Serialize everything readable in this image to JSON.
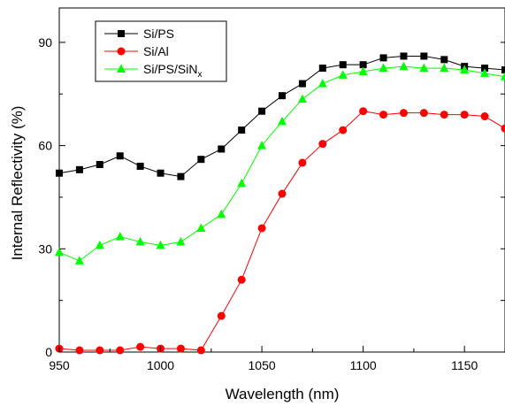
{
  "chart_data": {
    "type": "line",
    "xlabel": "Wavelength (nm)",
    "ylabel": "Internal Reflectivity (%)",
    "xlim": [
      950,
      1170
    ],
    "ylim": [
      0,
      100
    ],
    "xticks": [
      950,
      1000,
      1050,
      1100,
      1150
    ],
    "yticks": [
      0,
      30,
      60,
      90
    ],
    "x": [
      950,
      960,
      970,
      980,
      990,
      1000,
      1010,
      1020,
      1030,
      1040,
      1050,
      1060,
      1070,
      1080,
      1090,
      1100,
      1110,
      1120,
      1130,
      1140,
      1150,
      1160,
      1170
    ],
    "legend_position": "top-left",
    "series": [
      {
        "name": "Si/PS",
        "color": "#000000",
        "marker": "square",
        "values": [
          52,
          53,
          54.5,
          57,
          54,
          52,
          51,
          56,
          59,
          64.5,
          70,
          74.5,
          78,
          82.5,
          83.5,
          83.5,
          85.5,
          86,
          86,
          85,
          83,
          82.5,
          82
        ]
      },
      {
        "name": "Si/Al",
        "color": "#ff0000",
        "marker": "circle",
        "values": [
          1,
          0.5,
          0.5,
          0.5,
          1.5,
          1,
          1,
          0.5,
          10.5,
          21,
          36,
          46,
          55,
          60.5,
          64.5,
          70,
          69,
          69.5,
          69.5,
          69,
          69,
          68.5,
          65
        ]
      },
      {
        "name_parts": [
          "Si/PS/SiN",
          "x"
        ],
        "color": "#00ff00",
        "marker": "triangle",
        "values": [
          29,
          26.5,
          31,
          33.5,
          32,
          31,
          32,
          36,
          40,
          49,
          60,
          67,
          73.5,
          78,
          80.5,
          81.5,
          82.5,
          83,
          82.5,
          82.5,
          82,
          81,
          80
        ]
      }
    ]
  }
}
